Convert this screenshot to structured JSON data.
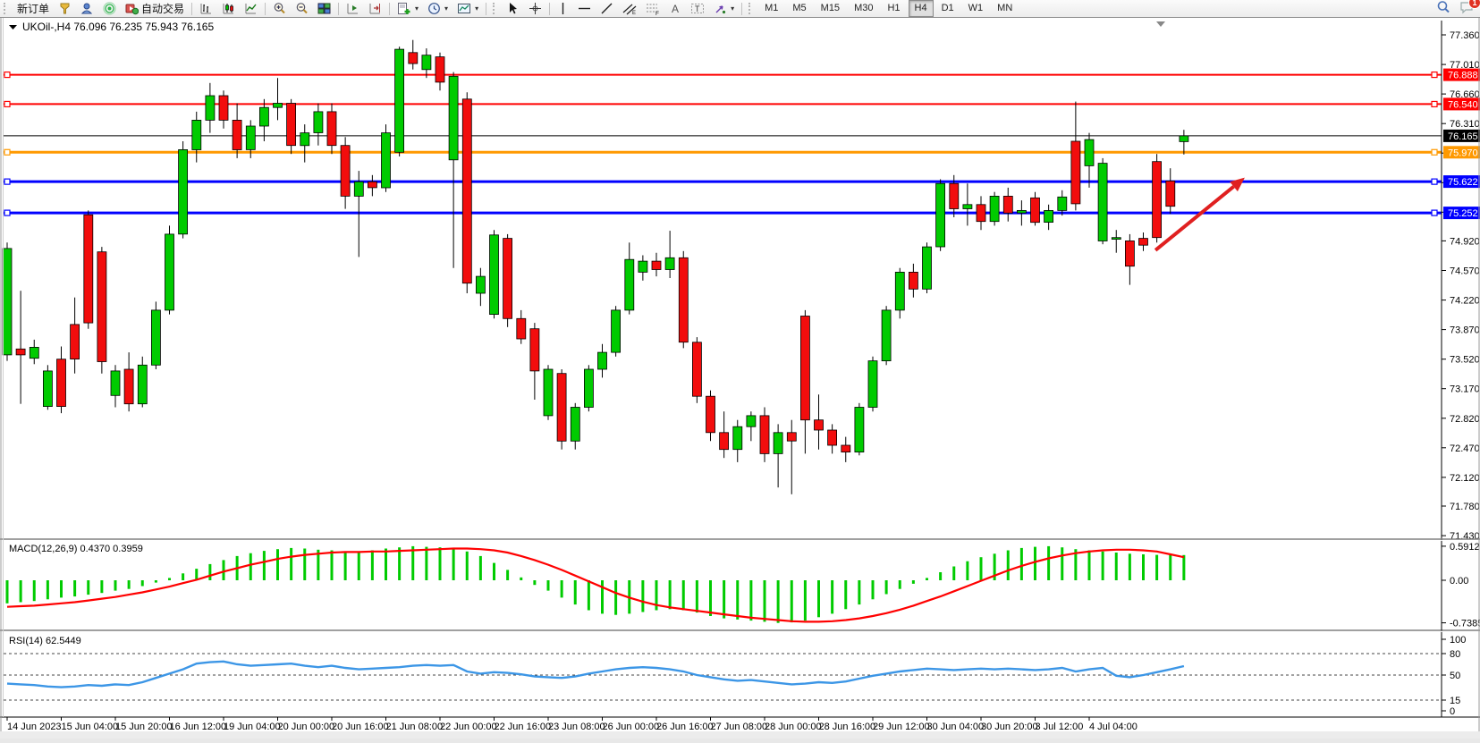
{
  "toolbar": {
    "new_order_label": "新订单",
    "auto_trading_label": "自动交易",
    "timeframes": [
      "M1",
      "M5",
      "M15",
      "M30",
      "H1",
      "H4",
      "D1",
      "W1",
      "MN"
    ],
    "active_timeframe": "H4",
    "notification_count": "1",
    "icons": [
      "funnel-icon",
      "account-icon",
      "signal-icon",
      "autotrade-icon",
      "bar-chart-icon",
      "candlestick-chart-icon",
      "line-chart-icon",
      "zoom-in-icon",
      "zoom-out-icon",
      "tile-windows-icon",
      "chart-shift-icon",
      "chart-autoscroll-icon",
      "add-indicator-icon",
      "period-icon",
      "template-icon",
      "cursor-icon",
      "crosshair-icon",
      "vertical-line-icon",
      "horizontal-line-icon",
      "trendline-icon",
      "channel-icon",
      "fibonacci-icon",
      "text-icon",
      "label-icon",
      "arrows-icon",
      "search-icon",
      "chat-icon"
    ]
  },
  "chart_data": {
    "type": "candlestick",
    "title": "UKOil-,H4",
    "ohlc_header": "76.096 76.235 75.943 76.165",
    "current_bar": {
      "open": 76.096,
      "high": 76.235,
      "low": 75.943,
      "close": 76.165
    },
    "current_price": 76.165,
    "y_ticks": [
      77.36,
      77.01,
      76.66,
      76.31,
      75.96,
      75.61,
      75.26,
      74.92,
      74.57,
      74.22,
      73.87,
      73.52,
      73.17,
      72.82,
      72.47,
      72.12,
      71.78,
      71.43
    ],
    "x_labels": [
      {
        "bar": 0,
        "text": "14 Jun 2023"
      },
      {
        "bar": 4,
        "text": "15 Jun 04:00"
      },
      {
        "bar": 8,
        "text": "15 Jun 20:00"
      },
      {
        "bar": 12,
        "text": "16 Jun 12:00"
      },
      {
        "bar": 16,
        "text": "19 Jun 04:00"
      },
      {
        "bar": 20,
        "text": "20 Jun 00:00"
      },
      {
        "bar": 24,
        "text": "20 Jun 16:00"
      },
      {
        "bar": 28,
        "text": "21 Jun 08:00"
      },
      {
        "bar": 32,
        "text": "22 Jun 00:00"
      },
      {
        "bar": 36,
        "text": "22 Jun 16:00"
      },
      {
        "bar": 40,
        "text": "23 Jun 08:00"
      },
      {
        "bar": 44,
        "text": "26 Jun 00:00"
      },
      {
        "bar": 48,
        "text": "26 Jun 16:00"
      },
      {
        "bar": 52,
        "text": "27 Jun 08:00"
      },
      {
        "bar": 56,
        "text": "28 Jun 00:00"
      },
      {
        "bar": 60,
        "text": "28 Jun 16:00"
      },
      {
        "bar": 64,
        "text": "29 Jun 12:00"
      },
      {
        "bar": 68,
        "text": "30 Jun 04:00"
      },
      {
        "bar": 72,
        "text": "30 Jun 20:00"
      },
      {
        "bar": 76,
        "text": "3 Jul 12:00"
      },
      {
        "bar": 80,
        "text": "4 Jul 04:00"
      }
    ],
    "hlines": [
      {
        "price": 76.888,
        "color": "#FF0000",
        "width": 2,
        "name": "resistance-line-1"
      },
      {
        "price": 76.54,
        "color": "#FF0000",
        "width": 2,
        "name": "resistance-line-2"
      },
      {
        "price": 75.97,
        "color": "#FF9900",
        "width": 3,
        "name": "pivot-line"
      },
      {
        "price": 75.622,
        "color": "#0000FF",
        "width": 3,
        "name": "support-line-1"
      },
      {
        "price": 75.252,
        "color": "#0000FF",
        "width": 3,
        "name": "support-line-2"
      }
    ],
    "trend_arrow": {
      "from_bar": 84.9,
      "from_price": 74.81,
      "to_bar": 91.5,
      "to_price": 75.67,
      "color": "#E02020"
    },
    "colors": {
      "bull": "#00CB00",
      "bear": "#F20D0D",
      "wick": "#000000",
      "current_line": "#000000",
      "macd_hist": "#00CB00",
      "macd_signal": "#FF0000",
      "rsi_line": "#3C96E6",
      "axis_text": "#000000"
    },
    "candles": [
      [
        73.57,
        74.9,
        73.5,
        74.83
      ],
      [
        73.64,
        74.33,
        72.99,
        73.57
      ],
      [
        73.53,
        73.75,
        73.46,
        73.66
      ],
      [
        72.96,
        73.45,
        72.92,
        73.38
      ],
      [
        73.52,
        73.67,
        72.88,
        72.96
      ],
      [
        73.93,
        74.25,
        73.35,
        73.52
      ],
      [
        75.23,
        75.28,
        73.88,
        73.95
      ],
      [
        74.79,
        74.85,
        73.35,
        73.49
      ],
      [
        73.09,
        73.45,
        72.95,
        73.38
      ],
      [
        73.4,
        73.6,
        72.9,
        72.99
      ],
      [
        72.99,
        73.55,
        72.95,
        73.45
      ],
      [
        73.45,
        74.2,
        73.4,
        74.1
      ],
      [
        74.1,
        75.1,
        74.05,
        75.0
      ],
      [
        75.0,
        76.1,
        74.95,
        76.0
      ],
      [
        76.0,
        76.45,
        75.85,
        76.35
      ],
      [
        76.35,
        76.79,
        76.2,
        76.64
      ],
      [
        76.64,
        76.7,
        76.25,
        76.35
      ],
      [
        76.35,
        76.55,
        75.9,
        76.0
      ],
      [
        76.0,
        76.35,
        75.9,
        76.28
      ],
      [
        76.28,
        76.6,
        76.1,
        76.5
      ],
      [
        76.5,
        76.85,
        76.35,
        76.55
      ],
      [
        76.55,
        76.6,
        75.95,
        76.05
      ],
      [
        76.05,
        76.3,
        75.85,
        76.2
      ],
      [
        76.2,
        76.55,
        76.05,
        76.45
      ],
      [
        76.45,
        76.55,
        75.95,
        76.05
      ],
      [
        76.05,
        76.15,
        75.3,
        75.45
      ],
      [
        75.45,
        75.75,
        74.73,
        75.62
      ],
      [
        75.62,
        75.7,
        75.45,
        75.55
      ],
      [
        75.55,
        76.3,
        75.5,
        76.2
      ],
      [
        75.97,
        77.22,
        75.92,
        77.19
      ],
      [
        77.15,
        77.3,
        76.95,
        77.02
      ],
      [
        76.95,
        77.2,
        76.85,
        77.12
      ],
      [
        77.1,
        77.15,
        76.7,
        76.8
      ],
      [
        75.88,
        76.92,
        74.6,
        76.87
      ],
      [
        76.6,
        76.68,
        74.3,
        74.42
      ],
      [
        74.3,
        74.6,
        74.15,
        74.5
      ],
      [
        74.05,
        75.05,
        74.0,
        74.99
      ],
      [
        74.95,
        75.0,
        73.9,
        74.0
      ],
      [
        74.0,
        74.1,
        73.7,
        73.76
      ],
      [
        73.88,
        73.95,
        73.04,
        73.38
      ],
      [
        72.85,
        73.45,
        72.8,
        73.4
      ],
      [
        73.35,
        73.4,
        72.45,
        72.55
      ],
      [
        72.55,
        73.0,
        72.45,
        72.95
      ],
      [
        72.95,
        73.45,
        72.9,
        73.4
      ],
      [
        73.4,
        73.7,
        73.3,
        73.6
      ],
      [
        73.6,
        74.15,
        73.55,
        74.1
      ],
      [
        74.1,
        74.9,
        74.05,
        74.7
      ],
      [
        74.55,
        74.75,
        74.45,
        74.68
      ],
      [
        74.68,
        74.78,
        74.5,
        74.58
      ],
      [
        74.58,
        75.04,
        74.48,
        74.72
      ],
      [
        74.72,
        74.8,
        73.65,
        73.72
      ],
      [
        73.72,
        73.78,
        73.0,
        73.08
      ],
      [
        73.08,
        73.15,
        72.55,
        72.65
      ],
      [
        72.65,
        72.9,
        72.35,
        72.45
      ],
      [
        72.45,
        72.8,
        72.3,
        72.72
      ],
      [
        72.72,
        72.9,
        72.55,
        72.85
      ],
      [
        72.85,
        72.95,
        72.3,
        72.4
      ],
      [
        72.4,
        72.75,
        72.0,
        72.65
      ],
      [
        72.65,
        72.8,
        71.92,
        72.55
      ],
      [
        74.03,
        74.1,
        72.4,
        72.8
      ],
      [
        72.8,
        73.1,
        72.45,
        72.68
      ],
      [
        72.68,
        72.75,
        72.4,
        72.5
      ],
      [
        72.5,
        72.6,
        72.3,
        72.42
      ],
      [
        72.42,
        73.0,
        72.38,
        72.95
      ],
      [
        72.95,
        73.55,
        72.9,
        73.5
      ],
      [
        73.5,
        74.15,
        73.45,
        74.1
      ],
      [
        74.1,
        74.6,
        74.0,
        74.55
      ],
      [
        74.55,
        74.65,
        74.25,
        74.35
      ],
      [
        74.35,
        74.9,
        74.3,
        74.85
      ],
      [
        74.85,
        75.65,
        74.8,
        75.6
      ],
      [
        75.6,
        75.7,
        75.2,
        75.3
      ],
      [
        75.3,
        75.6,
        75.1,
        75.35
      ],
      [
        75.35,
        75.45,
        75.05,
        75.15
      ],
      [
        75.15,
        75.5,
        75.1,
        75.45
      ],
      [
        75.45,
        75.55,
        75.15,
        75.25
      ],
      [
        75.25,
        75.4,
        75.1,
        75.28
      ],
      [
        75.43,
        75.5,
        75.1,
        75.14
      ],
      [
        75.14,
        75.35,
        75.05,
        75.28
      ],
      [
        75.28,
        75.52,
        75.22,
        75.44
      ],
      [
        76.1,
        76.57,
        75.28,
        75.36
      ],
      [
        75.81,
        76.2,
        75.55,
        76.12
      ],
      [
        74.92,
        75.9,
        74.88,
        75.84
      ],
      [
        74.94,
        75.05,
        74.78,
        74.96
      ],
      [
        74.92,
        75.0,
        74.4,
        74.62
      ],
      [
        74.95,
        75.02,
        74.8,
        74.87
      ],
      [
        75.86,
        75.95,
        74.9,
        74.96
      ],
      [
        75.63,
        75.78,
        75.24,
        75.33
      ],
      [
        76.096,
        76.235,
        75.943,
        76.165
      ]
    ],
    "macd": {
      "label": "MACD(12,26,9)",
      "value_main": "0.4370",
      "value_signal": "0.3959",
      "ticks": [
        "0.5912",
        "0.00",
        "-0.7385"
      ],
      "tick_values": [
        0.5912,
        0.0,
        -0.7385
      ],
      "histogram": [
        -0.4,
        -0.38,
        -0.36,
        -0.33,
        -0.3,
        -0.28,
        -0.25,
        -0.22,
        -0.18,
        -0.15,
        -0.1,
        -0.04,
        0.04,
        0.12,
        0.2,
        0.28,
        0.35,
        0.42,
        0.47,
        0.51,
        0.54,
        0.56,
        0.55,
        0.53,
        0.52,
        0.5,
        0.5,
        0.52,
        0.55,
        0.57,
        0.59,
        0.58,
        0.57,
        0.55,
        0.5,
        0.42,
        0.3,
        0.18,
        0.05,
        -0.08,
        -0.18,
        -0.3,
        -0.42,
        -0.52,
        -0.58,
        -0.6,
        -0.58,
        -0.55,
        -0.52,
        -0.5,
        -0.52,
        -0.56,
        -0.62,
        -0.66,
        -0.68,
        -0.7,
        -0.72,
        -0.74,
        -0.73,
        -0.7,
        -0.64,
        -0.58,
        -0.5,
        -0.42,
        -0.33,
        -0.24,
        -0.15,
        -0.06,
        0.04,
        0.14,
        0.24,
        0.33,
        0.4,
        0.46,
        0.52,
        0.56,
        0.58,
        0.59,
        0.57,
        0.54,
        0.52,
        0.5,
        0.48,
        0.46,
        0.45,
        0.44,
        0.44,
        0.437
      ],
      "signal": [
        -0.46,
        -0.45,
        -0.44,
        -0.42,
        -0.4,
        -0.38,
        -0.35,
        -0.32,
        -0.29,
        -0.25,
        -0.21,
        -0.16,
        -0.11,
        -0.05,
        0.01,
        0.08,
        0.15,
        0.21,
        0.27,
        0.32,
        0.37,
        0.41,
        0.44,
        0.46,
        0.48,
        0.49,
        0.49,
        0.5,
        0.5,
        0.51,
        0.52,
        0.53,
        0.54,
        0.55,
        0.55,
        0.54,
        0.52,
        0.48,
        0.42,
        0.35,
        0.27,
        0.18,
        0.08,
        -0.02,
        -0.12,
        -0.22,
        -0.3,
        -0.37,
        -0.43,
        -0.47,
        -0.5,
        -0.53,
        -0.56,
        -0.59,
        -0.62,
        -0.65,
        -0.67,
        -0.69,
        -0.71,
        -0.72,
        -0.72,
        -0.71,
        -0.69,
        -0.66,
        -0.62,
        -0.57,
        -0.51,
        -0.44,
        -0.36,
        -0.28,
        -0.19,
        -0.1,
        -0.01,
        0.08,
        0.17,
        0.25,
        0.32,
        0.38,
        0.43,
        0.47,
        0.5,
        0.52,
        0.53,
        0.53,
        0.52,
        0.5,
        0.45,
        0.4
      ]
    },
    "rsi": {
      "label": "RSI(14)",
      "value": "62.5449",
      "ticks": [
        "100",
        "80",
        "50",
        "15",
        "0"
      ],
      "tick_values": [
        100,
        80,
        50,
        15,
        0
      ],
      "levels": [
        80,
        50,
        15
      ],
      "line": [
        38,
        37,
        36,
        34,
        33,
        34,
        36,
        35,
        37,
        36,
        40,
        46,
        52,
        58,
        66,
        68,
        69,
        65,
        63,
        64,
        65,
        66,
        63,
        61,
        63,
        60,
        58,
        59,
        60,
        61,
        63,
        64,
        63,
        64,
        55,
        52,
        54,
        53,
        51,
        48,
        47,
        46,
        48,
        52,
        55,
        58,
        60,
        61,
        60,
        58,
        55,
        50,
        47,
        44,
        42,
        43,
        41,
        39,
        37,
        38,
        40,
        39,
        41,
        45,
        49,
        52,
        55,
        57,
        59,
        58,
        57,
        58,
        59,
        58,
        59,
        58,
        57,
        58,
        60,
        55,
        58,
        60,
        49,
        47,
        50,
        54,
        58,
        62.5
      ]
    }
  }
}
